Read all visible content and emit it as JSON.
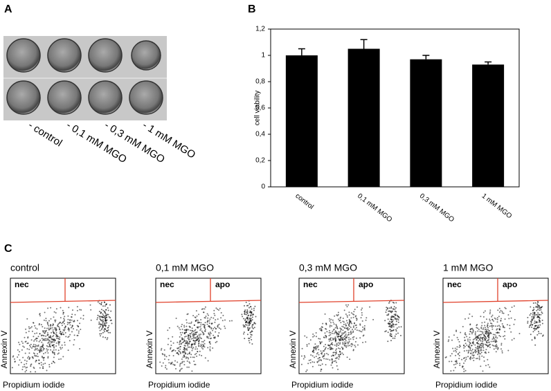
{
  "panel_labels": [
    "A",
    "B",
    "C"
  ],
  "panel_a": {
    "labels": [
      "- control",
      "- 0,1 mM MGO",
      "- 0,3 mM MGO",
      "- 1 mM MGO"
    ]
  },
  "chart_data": {
    "type": "bar",
    "y_label": "cell viability",
    "categories": [
      "control",
      "0,1 mM MGO",
      "0,3 mM MGO",
      "1 mM MGO"
    ],
    "values": [
      1,
      1.05,
      0.97,
      0.93
    ],
    "errors": [
      0.05,
      0.07,
      0.03,
      0.02
    ],
    "color": "#000000",
    "ylim": [
      0,
      1.2
    ],
    "yticks": [
      0,
      {
        "value": 0.2,
        "label": "0,2"
      },
      {
        "value": 0.4,
        "label": "0,4"
      },
      {
        "value": 0.6,
        "label": "0,6"
      },
      {
        "value": 0.8,
        "label": "0,8"
      },
      1,
      {
        "value": 1.2,
        "label": "1,2"
      }
    ]
  },
  "panel_c": {
    "plots": [
      {
        "title": "control",
        "x_label": "Propidium iodide",
        "y_label": "Annexin V",
        "gates": [
          "nec",
          "apo"
        ]
      },
      {
        "title": "0,1 mM MGO",
        "x_label": "Propidium iodide",
        "y_label": "Annexin V",
        "gates": [
          "nec",
          "apo"
        ]
      },
      {
        "title": "0,3 mM MGO",
        "x_label": "Propidium iodide",
        "y_label": "Annexin V",
        "gates": [
          "nec",
          "apo"
        ]
      },
      {
        "title": "1 mM MGO",
        "x_label": "Propidium iodide",
        "y_label": "Annexin V",
        "gates": [
          "nec",
          "apo"
        ]
      }
    ]
  }
}
